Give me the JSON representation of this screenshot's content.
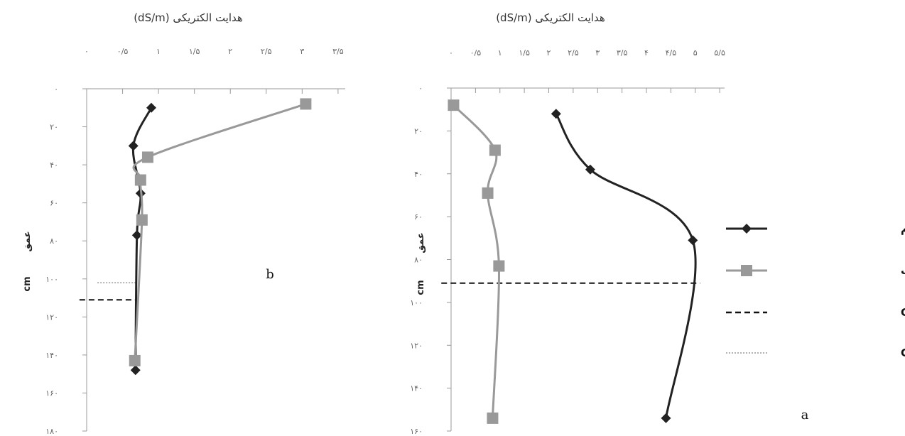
{
  "chart_data": [
    {
      "type": "line",
      "panel_label": "b",
      "title": "هدایت الکتریکی (dS/m)",
      "ylabel_top": "عمق",
      "ylabel_bottom": "cm",
      "x_ticks": [
        {
          "v": 0,
          "label": "۰"
        },
        {
          "v": 0.5,
          "label": "۰/۵"
        },
        {
          "v": 1,
          "label": "۱"
        },
        {
          "v": 1.5,
          "label": "۱/۵"
        },
        {
          "v": 2,
          "label": "۲"
        },
        {
          "v": 2.5,
          "label": "۲/۵"
        },
        {
          "v": 3,
          "label": "۳"
        },
        {
          "v": 3.5,
          "label": "۳/۵"
        }
      ],
      "y_ticks": [
        {
          "v": 0,
          "label": "۰"
        },
        {
          "v": 20,
          "label": "۲۰"
        },
        {
          "v": 40,
          "label": "۴۰"
        },
        {
          "v": 60,
          "label": "۶۰"
        },
        {
          "v": 80,
          "label": "۸۰"
        },
        {
          "v": 100,
          "label": "۱۰۰"
        },
        {
          "v": 120,
          "label": "۱۲۰"
        },
        {
          "v": 140,
          "label": "۱۴۰"
        },
        {
          "v": 160,
          "label": "۱۶۰"
        },
        {
          "v": 180,
          "label": "۱۸۰"
        }
      ],
      "xlim": [
        0,
        3.6
      ],
      "ylim": [
        0,
        180
      ],
      "y_inverted": true,
      "series": [
        {
          "name": "کاربری گندم",
          "marker": "diamond",
          "color": "#222222",
          "dash": "solid",
          "points": [
            [
              0.9,
              10
            ],
            [
              0.65,
              30
            ],
            [
              0.75,
              55
            ],
            [
              0.7,
              77
            ],
            [
              0.68,
              148
            ]
          ]
        },
        {
          "name": "کاربری باغ سیب",
          "marker": "square",
          "color": "#999999",
          "dash": "solid",
          "points": [
            [
              3.05,
              8
            ],
            [
              0.85,
              36
            ],
            [
              0.75,
              48
            ],
            [
              0.77,
              69
            ],
            [
              0.67,
              143
            ]
          ]
        }
      ],
      "hlines": [
        {
          "name": "مرز بالایی افق C",
          "y": 102,
          "x_from": 0.15,
          "x_to": 0.7,
          "style": "dotted",
          "color": "#999999"
        },
        {
          "name": "مرز بالایی افق C",
          "y": 111,
          "x_from": -0.1,
          "x_to": 0.7,
          "style": "dashed",
          "color": "#111111"
        }
      ]
    },
    {
      "type": "line",
      "panel_label": "a",
      "title": "هدایت الکتریکی (dS/m)",
      "ylabel_top": "عمق",
      "ylabel_bottom": "cm",
      "x_ticks": [
        {
          "v": 0,
          "label": "۰"
        },
        {
          "v": 0.5,
          "label": "۰/۵"
        },
        {
          "v": 1,
          "label": "۱"
        },
        {
          "v": 1.5,
          "label": "۱/۵"
        },
        {
          "v": 2,
          "label": "۲"
        },
        {
          "v": 2.5,
          "label": "۲/۵"
        },
        {
          "v": 3,
          "label": "۳"
        },
        {
          "v": 3.5,
          "label": "۳/۵"
        },
        {
          "v": 4,
          "label": "۴"
        },
        {
          "v": 4.5,
          "label": "۴/۵"
        },
        {
          "v": 5,
          "label": "۵"
        },
        {
          "v": 5.5,
          "label": "۵/۵"
        }
      ],
      "y_ticks": [
        {
          "v": 0,
          "label": "۰"
        },
        {
          "v": 20,
          "label": "۲۰"
        },
        {
          "v": 40,
          "label": "۴۰"
        },
        {
          "v": 60,
          "label": "۶۰"
        },
        {
          "v": 80,
          "label": "۸۰"
        },
        {
          "v": 100,
          "label": "۱۰۰"
        },
        {
          "v": 120,
          "label": "۱۲۰"
        },
        {
          "v": 140,
          "label": "۱۴۰"
        },
        {
          "v": 160,
          "label": "۱۶۰"
        }
      ],
      "xlim": [
        0,
        5.6
      ],
      "ylim": [
        0,
        160
      ],
      "y_inverted": true,
      "series": [
        {
          "name": "کاربری گندم",
          "marker": "diamond",
          "color": "#222222",
          "dash": "solid",
          "points": [
            [
              2.15,
              12
            ],
            [
              2.85,
              38
            ],
            [
              4.95,
              71
            ],
            [
              4.4,
              154
            ]
          ]
        },
        {
          "name": "کاربری باغ سیب",
          "marker": "square",
          "color": "#999999",
          "dash": "solid",
          "points": [
            [
              0.05,
              8
            ],
            [
              0.9,
              29
            ],
            [
              0.75,
              49
            ],
            [
              0.98,
              83
            ],
            [
              0.85,
              154
            ]
          ]
        }
      ],
      "hlines": [
        {
          "name": "مرز بالایی افق C",
          "y": 91,
          "x_from": -0.2,
          "x_to": 5.1,
          "style": "dashed",
          "color": "#111111"
        }
      ]
    }
  ],
  "legend": {
    "placement": "right",
    "items": [
      {
        "label": "کاربری گندم",
        "type": "line-marker",
        "marker": "diamond",
        "color": "#222222",
        "dash": "solid"
      },
      {
        "label": "کاربری باغ سیب",
        "type": "line-marker",
        "marker": "square",
        "color": "#999999",
        "dash": "solid"
      },
      {
        "label": "مرز بالایی افق C",
        "type": "line",
        "color": "#111111",
        "dash": "dashed"
      },
      {
        "label": "مرز بالایی افق C",
        "type": "line",
        "color": "#999999",
        "dash": "dotted"
      }
    ]
  }
}
